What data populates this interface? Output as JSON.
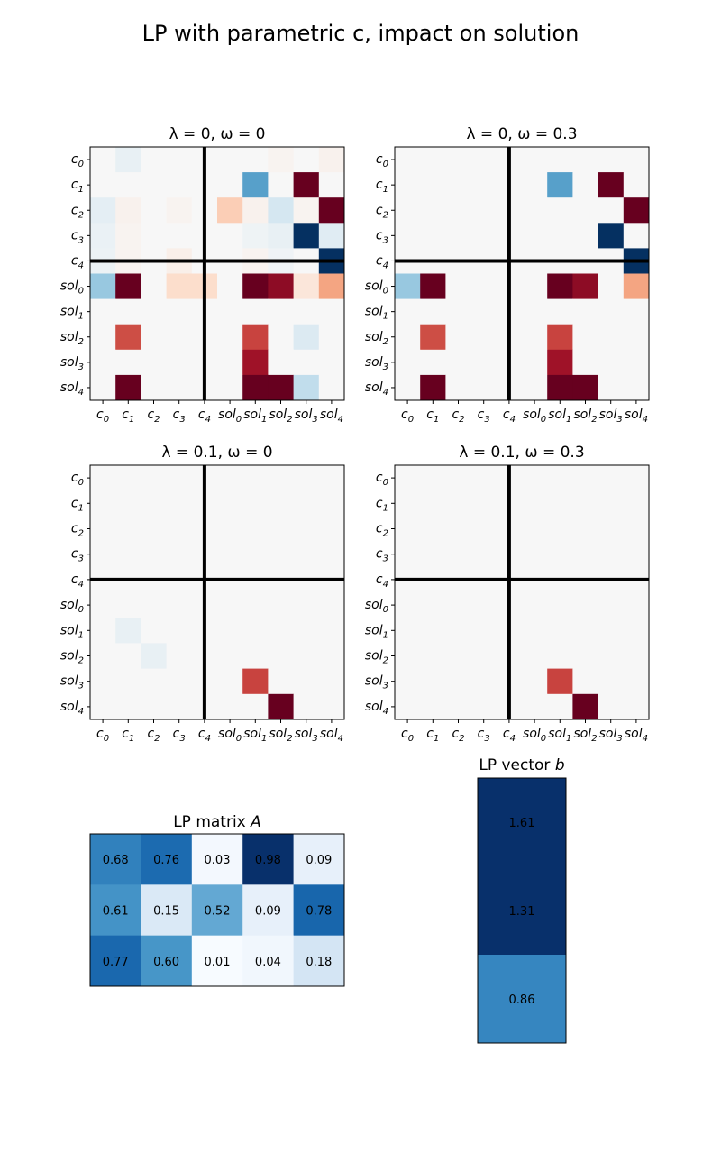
{
  "figure": {
    "title": "LP with parametric c, impact on solution"
  },
  "colormap": {
    "name": "RdBu_r",
    "stops": [
      "#053061",
      "#2166ac",
      "#4393c3",
      "#92c5de",
      "#d1e5f0",
      "#f7f7f7",
      "#fddbc7",
      "#f4a582",
      "#d6604d",
      "#b2182b",
      "#67001f"
    ]
  },
  "blues_colormap": {
    "name": "Blues",
    "stops": [
      "#f7fbff",
      "#deebf7",
      "#c6dbef",
      "#9ecae1",
      "#6baed6",
      "#4292c6",
      "#2171b5",
      "#08519c",
      "#08306b"
    ]
  },
  "chart_data": [
    {
      "type": "heatmap",
      "title_text": "λ = 0, ω = 0",
      "tick_labels": [
        {
          "base": "c",
          "sub": "0"
        },
        {
          "base": "c",
          "sub": "1"
        },
        {
          "base": "c",
          "sub": "2"
        },
        {
          "base": "c",
          "sub": "3"
        },
        {
          "base": "c",
          "sub": "4"
        },
        {
          "base": "sol",
          "sub": "0"
        },
        {
          "base": "sol",
          "sub": "1"
        },
        {
          "base": "sol",
          "sub": "2"
        },
        {
          "base": "sol",
          "sub": "3"
        },
        {
          "base": "sol",
          "sub": "4"
        }
      ],
      "divider_after": 5,
      "vmin": -1,
      "vmax": 1,
      "matrix": [
        [
          0,
          -0.08,
          0,
          0,
          0,
          0,
          0,
          0.03,
          0,
          0.04
        ],
        [
          0,
          0,
          0,
          0,
          0,
          0,
          -0.55,
          0,
          1,
          0
        ],
        [
          -0.1,
          0.04,
          0,
          0.03,
          0,
          0.25,
          0.04,
          -0.18,
          0.03,
          1
        ],
        [
          -0.07,
          0.03,
          0,
          0,
          0,
          0,
          -0.05,
          -0.08,
          -1,
          -0.12
        ],
        [
          -0.06,
          0.03,
          0,
          0.06,
          0,
          0,
          0.03,
          -0.04,
          0,
          -1
        ],
        [
          -0.38,
          1,
          0,
          0.18,
          0.18,
          0,
          1,
          0.9,
          0.12,
          0.4
        ],
        [
          0,
          0,
          0,
          0,
          0,
          0,
          0,
          0,
          0,
          0
        ],
        [
          0,
          0.65,
          0,
          0,
          0,
          0,
          0.68,
          0,
          -0.14,
          0
        ],
        [
          0,
          0,
          0,
          0,
          0,
          0,
          0.85,
          0,
          0,
          0
        ],
        [
          0,
          1,
          0,
          0,
          0,
          0,
          1,
          1,
          -0.25,
          0
        ]
      ]
    },
    {
      "type": "heatmap",
      "title_text": "λ = 0, ω = 0.3",
      "tick_labels": [
        {
          "base": "c",
          "sub": "0"
        },
        {
          "base": "c",
          "sub": "1"
        },
        {
          "base": "c",
          "sub": "2"
        },
        {
          "base": "c",
          "sub": "3"
        },
        {
          "base": "c",
          "sub": "4"
        },
        {
          "base": "sol",
          "sub": "0"
        },
        {
          "base": "sol",
          "sub": "1"
        },
        {
          "base": "sol",
          "sub": "2"
        },
        {
          "base": "sol",
          "sub": "3"
        },
        {
          "base": "sol",
          "sub": "4"
        }
      ],
      "divider_after": 5,
      "vmin": -1,
      "vmax": 1,
      "matrix": [
        [
          0,
          0,
          0,
          0,
          0,
          0,
          0,
          0,
          0,
          0
        ],
        [
          0,
          0,
          0,
          0,
          0,
          0,
          -0.55,
          0,
          1,
          0
        ],
        [
          0,
          0,
          0,
          0,
          0,
          0,
          0,
          0,
          0,
          1
        ],
        [
          0,
          0,
          0,
          0,
          0,
          0,
          0,
          0,
          -1,
          0
        ],
        [
          0,
          0,
          0,
          0,
          0,
          0,
          0,
          0,
          0,
          -1
        ],
        [
          -0.38,
          1,
          0,
          0,
          0,
          0,
          1,
          0.9,
          0,
          0.4
        ],
        [
          0,
          0,
          0,
          0,
          0,
          0,
          0,
          0,
          0,
          0
        ],
        [
          0,
          0.65,
          0,
          0,
          0,
          0,
          0.68,
          0,
          0,
          0
        ],
        [
          0,
          0,
          0,
          0,
          0,
          0,
          0.85,
          0,
          0,
          0
        ],
        [
          0,
          1,
          0,
          0,
          0,
          0,
          1,
          1,
          0,
          0
        ]
      ]
    },
    {
      "type": "heatmap",
      "title_text": "λ = 0.1, ω = 0",
      "tick_labels": [
        {
          "base": "c",
          "sub": "0"
        },
        {
          "base": "c",
          "sub": "1"
        },
        {
          "base": "c",
          "sub": "2"
        },
        {
          "base": "c",
          "sub": "3"
        },
        {
          "base": "c",
          "sub": "4"
        },
        {
          "base": "sol",
          "sub": "0"
        },
        {
          "base": "sol",
          "sub": "1"
        },
        {
          "base": "sol",
          "sub": "2"
        },
        {
          "base": "sol",
          "sub": "3"
        },
        {
          "base": "sol",
          "sub": "4"
        }
      ],
      "divider_after": 5,
      "vmin": -1,
      "vmax": 1,
      "matrix": [
        [
          0,
          0,
          0,
          0,
          0,
          0,
          0,
          0,
          0,
          0
        ],
        [
          0,
          0,
          0,
          0,
          0,
          0,
          0,
          0,
          0,
          0
        ],
        [
          0,
          0,
          0,
          0,
          0,
          0,
          0,
          0,
          0,
          0
        ],
        [
          0,
          0,
          0,
          0,
          0,
          0,
          0,
          0,
          0,
          0
        ],
        [
          0,
          0,
          0,
          0,
          0,
          0,
          0,
          0,
          0,
          0
        ],
        [
          0,
          0,
          0,
          0,
          0,
          0,
          0,
          0,
          0,
          0
        ],
        [
          0,
          -0.08,
          0,
          0,
          0,
          0,
          0,
          0,
          0,
          0
        ],
        [
          0,
          0,
          -0.08,
          0,
          0,
          0,
          0,
          0,
          0,
          0
        ],
        [
          0,
          0,
          0,
          0,
          0,
          0,
          0.68,
          0,
          0,
          0
        ],
        [
          0,
          0,
          0,
          0,
          0,
          0,
          0,
          1,
          0,
          0
        ]
      ]
    },
    {
      "type": "heatmap",
      "title_text": "λ = 0.1, ω = 0.3",
      "tick_labels": [
        {
          "base": "c",
          "sub": "0"
        },
        {
          "base": "c",
          "sub": "1"
        },
        {
          "base": "c",
          "sub": "2"
        },
        {
          "base": "c",
          "sub": "3"
        },
        {
          "base": "c",
          "sub": "4"
        },
        {
          "base": "sol",
          "sub": "0"
        },
        {
          "base": "sol",
          "sub": "1"
        },
        {
          "base": "sol",
          "sub": "2"
        },
        {
          "base": "sol",
          "sub": "3"
        },
        {
          "base": "sol",
          "sub": "4"
        }
      ],
      "divider_after": 5,
      "vmin": -1,
      "vmax": 1,
      "matrix": [
        [
          0,
          0,
          0,
          0,
          0,
          0,
          0,
          0,
          0,
          0
        ],
        [
          0,
          0,
          0,
          0,
          0,
          0,
          0,
          0,
          0,
          0
        ],
        [
          0,
          0,
          0,
          0,
          0,
          0,
          0,
          0,
          0,
          0
        ],
        [
          0,
          0,
          0,
          0,
          0,
          0,
          0,
          0,
          0,
          0
        ],
        [
          0,
          0,
          0,
          0,
          0,
          0,
          0,
          0,
          0,
          0
        ],
        [
          0,
          0,
          0,
          0,
          0,
          0,
          0,
          0,
          0,
          0
        ],
        [
          0,
          0,
          0,
          0,
          0,
          0,
          0,
          0,
          0,
          0
        ],
        [
          0,
          0,
          0,
          0,
          0,
          0,
          0,
          0,
          0,
          0
        ],
        [
          0,
          0,
          0,
          0,
          0,
          0,
          0.68,
          0,
          0,
          0
        ],
        [
          0,
          0,
          0,
          0,
          0,
          0,
          0,
          1,
          0,
          0
        ]
      ]
    },
    {
      "type": "heatmap",
      "title_text": "LP matrix ",
      "title_var": "A",
      "values": [
        [
          0.68,
          0.76,
          0.03,
          0.98,
          0.09
        ],
        [
          0.61,
          0.15,
          0.52,
          0.09,
          0.78
        ],
        [
          0.77,
          0.6,
          0.01,
          0.04,
          0.18
        ]
      ],
      "labels": [
        [
          "0.68",
          "0.76",
          "0.03",
          "0.98",
          "0.09"
        ],
        [
          "0.61",
          "0.15",
          "0.52",
          "0.09",
          "0.78"
        ],
        [
          "0.77",
          "0.60",
          "0.01",
          "0.04",
          "0.18"
        ]
      ],
      "vmin": 0.01,
      "vmax": 0.98
    },
    {
      "type": "heatmap",
      "title_text": "LP vector ",
      "title_var": "b",
      "values": [
        1.61,
        1.31,
        0.86
      ],
      "labels": [
        "1.61",
        "1.31",
        "0.86"
      ],
      "vmin": 0,
      "vmax": 1.31
    }
  ]
}
